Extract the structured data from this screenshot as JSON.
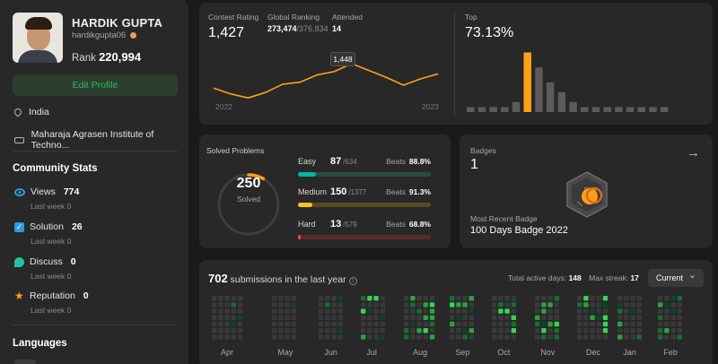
{
  "profile": {
    "name": "HARDIK GUPTA",
    "username": "hardikgupta06",
    "rank_label": "Rank",
    "rank": "220,994",
    "edit_button": "Edit Profile",
    "location": "India",
    "school": "Maharaja Agrasen Institute of Techno..."
  },
  "community": {
    "title": "Community Stats",
    "items": [
      {
        "label": "Views",
        "value": "774",
        "sub": "Last week 0",
        "icon": "eye-icon"
      },
      {
        "label": "Solution",
        "value": "26",
        "sub": "Last week 0",
        "icon": "check-icon"
      },
      {
        "label": "Discuss",
        "value": "0",
        "sub": "Last week 0",
        "icon": "discuss-icon"
      },
      {
        "label": "Reputation",
        "value": "0",
        "sub": "Last week 0",
        "icon": "star-icon"
      }
    ]
  },
  "languages": {
    "title": "Languages"
  },
  "contest": {
    "rating_label": "Contest Rating",
    "rating": "1,427",
    "global_label": "Global Ranking",
    "global_rank": "273,474",
    "global_total": "/376,834",
    "attended_label": "Attended",
    "attended": "14",
    "tooltip": "1,448",
    "x_start": "2022",
    "x_end": "2023",
    "top_label": "Top",
    "top_value": "73.13%"
  },
  "chart_data": [
    {
      "type": "line",
      "title": "Contest Rating",
      "x": [
        1,
        2,
        3,
        4,
        5,
        6,
        7,
        8,
        9,
        10,
        11,
        12,
        13,
        14
      ],
      "values": [
        1398,
        1386,
        1378,
        1389,
        1406,
        1410,
        1425,
        1432,
        1448,
        1434,
        1420,
        1404,
        1417,
        1427
      ],
      "highlight": {
        "index": 8,
        "value": 1448
      },
      "color": "#ffa116",
      "xlabels": [
        "2022",
        "2023"
      ],
      "ylim": [
        1360,
        1470
      ]
    },
    {
      "type": "bar",
      "title": "Top",
      "values": [
        1,
        1,
        1,
        1,
        2,
        12,
        9,
        6,
        4,
        2,
        1,
        1,
        1,
        1,
        1,
        1,
        1,
        1
      ],
      "highlight_index": 5,
      "color": "#5b5b5b",
      "highlight_color": "#ffa116",
      "ylim": [
        0,
        13
      ]
    }
  ],
  "solved": {
    "title": "Solved Problems",
    "total": "250",
    "total_label": "Solved",
    "ring_fraction": 0.083,
    "difficulties": [
      {
        "name": "Easy",
        "count": "87",
        "total": "/634",
        "beats_label": "Beats",
        "beats": "88.8%",
        "fraction": 0.137,
        "color": "#00b8a3",
        "track": "#2a4a45"
      },
      {
        "name": "Medium",
        "count": "150",
        "total": "/1377",
        "beats_label": "Beats",
        "beats": "91.3%",
        "fraction": 0.109,
        "color": "#ffc01e",
        "track": "#5a4a1f"
      },
      {
        "name": "Hard",
        "count": "13",
        "total": "/579",
        "beats_label": "Beats",
        "beats": "68.8%",
        "fraction": 0.022,
        "color": "#ef4743",
        "track": "#5a2a29"
      }
    ]
  },
  "badges": {
    "title": "Badges",
    "count": "1",
    "recent_label": "Most Recent Badge",
    "recent_name": "100 Days Badge 2022",
    "badge_text": "DAYS"
  },
  "submissions": {
    "count": "702",
    "label": "submissions in the last year",
    "active_label": "Total active days:",
    "active": "148",
    "streak_label": "Max streak:",
    "streak": "17",
    "period": "Current",
    "months": [
      "Apr",
      "May",
      "Jun",
      "Jul",
      "Aug",
      "Sep",
      "Oct",
      "Nov",
      "Dec",
      "Jan",
      "Feb"
    ]
  }
}
